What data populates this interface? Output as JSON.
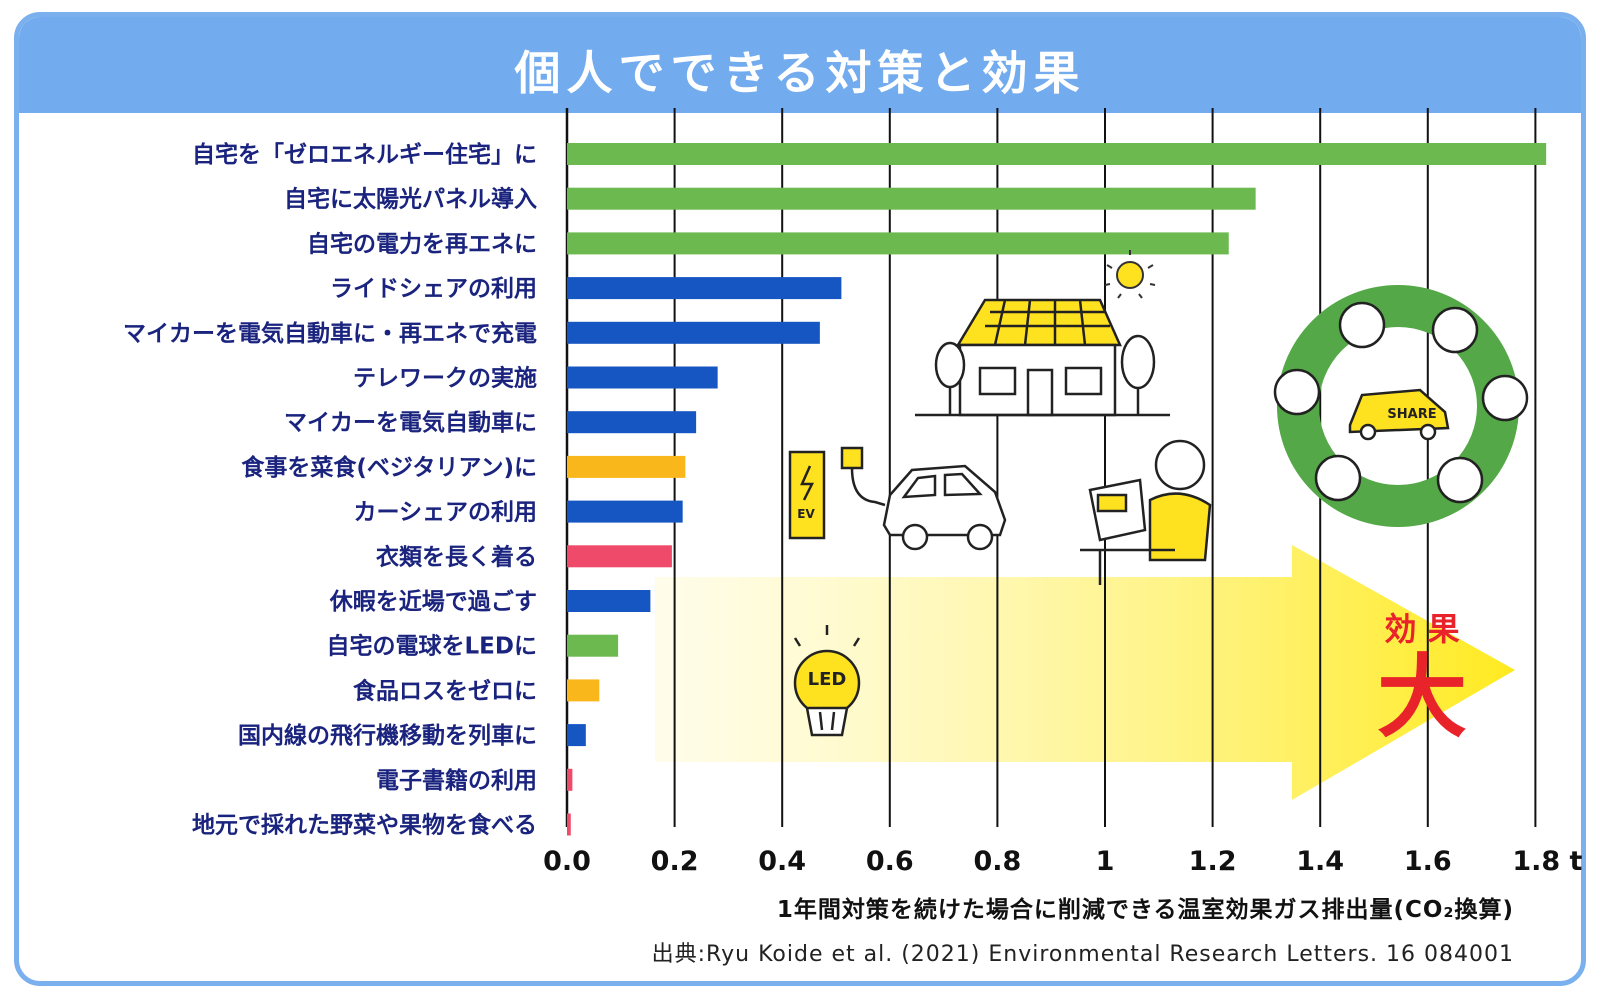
{
  "header": {
    "title": "個人でできる対策と効果"
  },
  "chart_data": {
    "type": "bar",
    "orientation": "horizontal",
    "categories": [
      "自宅を「ゼロエネルギー住宅」に",
      "自宅に太陽光パネル導入",
      "自宅の電力を再エネに",
      "ライドシェアの利用",
      "マイカーを電気自動車に・再エネで充電",
      "テレワークの実施",
      "マイカーを電気自動車に",
      "食事を菜食(ベジタリアン)に",
      "カーシェアの利用",
      "衣類を長く着る",
      "休暇を近場で過ごす",
      "自宅の電球をLEDに",
      "食品ロスをゼロに",
      "国内線の飛行機移動を列車に",
      "電子書籍の利用",
      "地元で採れた野菜や果物を食べる"
    ],
    "values": [
      1.82,
      1.28,
      1.23,
      0.51,
      0.47,
      0.28,
      0.24,
      0.22,
      0.215,
      0.195,
      0.155,
      0.095,
      0.06,
      0.035,
      0.01,
      0.007
    ],
    "colors": [
      "#6cb94f",
      "#6cb94f",
      "#6cb94f",
      "#1556c2",
      "#1556c2",
      "#1556c2",
      "#1556c2",
      "#f9b71c",
      "#1556c2",
      "#ef4a6a",
      "#1556c2",
      "#6cb94f",
      "#f9b71c",
      "#1556c2",
      "#ef4a6a",
      "#ef4a6a"
    ],
    "xticks": [
      0,
      0.2,
      0.4,
      0.6,
      0.8,
      1,
      1.2,
      1.4,
      1.6,
      1.8
    ],
    "xtick_labels": [
      "0.0",
      "0.2",
      "0.4",
      "0.6",
      "0.8",
      "1",
      "1.2",
      "1.4",
      "1.6",
      "1.8 t"
    ],
    "xlim": [
      0,
      1.85
    ],
    "xlabel": "1年間対策を続けた場合に削減できる温室効果ガス排出量(CO₂換算)",
    "grid": "vertical"
  },
  "annotation": {
    "line1": "効 果",
    "line2": "大"
  },
  "illustrations": {
    "share_car_label": "SHARE",
    "ev_label": "EV",
    "led_label": "LED"
  },
  "source": "出典:Ryu Koide et al. (2021) Environmental Research Letters. 16 084001"
}
